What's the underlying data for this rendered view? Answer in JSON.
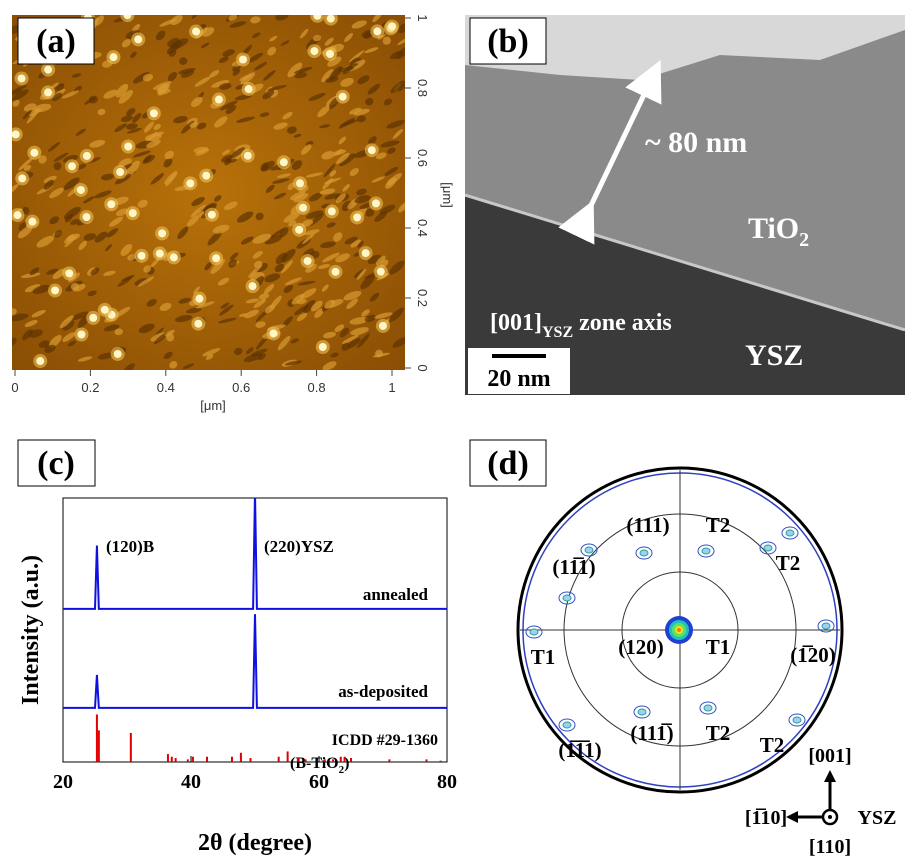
{
  "panels": {
    "a": {
      "label": "(a)",
      "xlim": [
        0,
        1
      ],
      "ylim": [
        0,
        1
      ],
      "xticks": [
        0,
        0.2,
        0.4,
        0.6,
        0.8,
        1
      ],
      "yticks": [
        0,
        0.2,
        0.4,
        0.6,
        0.8,
        1
      ],
      "x_unit": "[μm]",
      "y_unit": "[μm]"
    },
    "b": {
      "label": "(b)",
      "thickness": "~ 80 nm",
      "film": {
        "text": "TiO",
        "subscript": "2"
      },
      "substrate": "YSZ",
      "zone_axis": {
        "index": "[001]",
        "subscript": "YSZ",
        "text": " zone axis"
      },
      "scale_bar": "20 nm"
    },
    "d": {
      "label": "(d)",
      "poles": [
        "(111)",
        "T2",
        "T2",
        "(11̅1)",
        "T1",
        "(120)",
        "T1",
        "(1̅20)",
        "(1̅1̅1)",
        "(111̅)",
        "T2",
        "T2"
      ],
      "axes": {
        "up": "[001]",
        "left": "[1̅10]",
        "out": "[110]",
        "frame": "YSZ"
      }
    }
  },
  "chart_data": {
    "type": "line",
    "panel_label": "(c)",
    "xlabel": "2θ (degree)",
    "ylabel": "Intensity (a.u.)",
    "xlim": [
      20,
      80
    ],
    "ylim": [
      0,
      100
    ],
    "xticks": [
      20,
      40,
      60,
      80
    ],
    "annotations": [
      "(120)B",
      "(220)YSZ"
    ],
    "reference_phase": {
      "text": "(B-TiO",
      "subscript": "2",
      "end": ")"
    },
    "series": [
      {
        "name": "annealed",
        "color": "#1010e0",
        "x": [
          20,
          25.0,
          25.3,
          25.6,
          49.7,
          50.0,
          50.3,
          80
        ],
        "values": [
          58,
          58,
          82,
          58,
          58,
          102,
          58,
          58
        ]
      },
      {
        "name": "as-deposited",
        "color": "#1010e0",
        "x": [
          20,
          25.0,
          25.3,
          25.6,
          49.7,
          50.0,
          50.3,
          80
        ],
        "values": [
          20.5,
          20.5,
          33,
          20.5,
          20.5,
          56,
          20.5,
          20.5
        ]
      },
      {
        "name": "ICDD #29-1360",
        "color": "#e00000",
        "style": "stem",
        "x": [
          25.3,
          25.6,
          30.6,
          36.4,
          37.0,
          37.6,
          39.5,
          40.3,
          42.5,
          46.4,
          47.8,
          49.3,
          53.7,
          55.1,
          56.7,
          57.9,
          60.9,
          62.2,
          63.4,
          64.0,
          65.0,
          71.0,
          76.8,
          79.0
        ],
        "values": [
          18,
          12,
          11,
          3,
          2,
          1.5,
          1,
          2,
          2,
          2,
          3.5,
          1.5,
          2,
          4,
          1.5,
          1,
          1,
          1,
          2,
          2,
          1.5,
          1,
          1,
          0.5
        ]
      }
    ]
  }
}
